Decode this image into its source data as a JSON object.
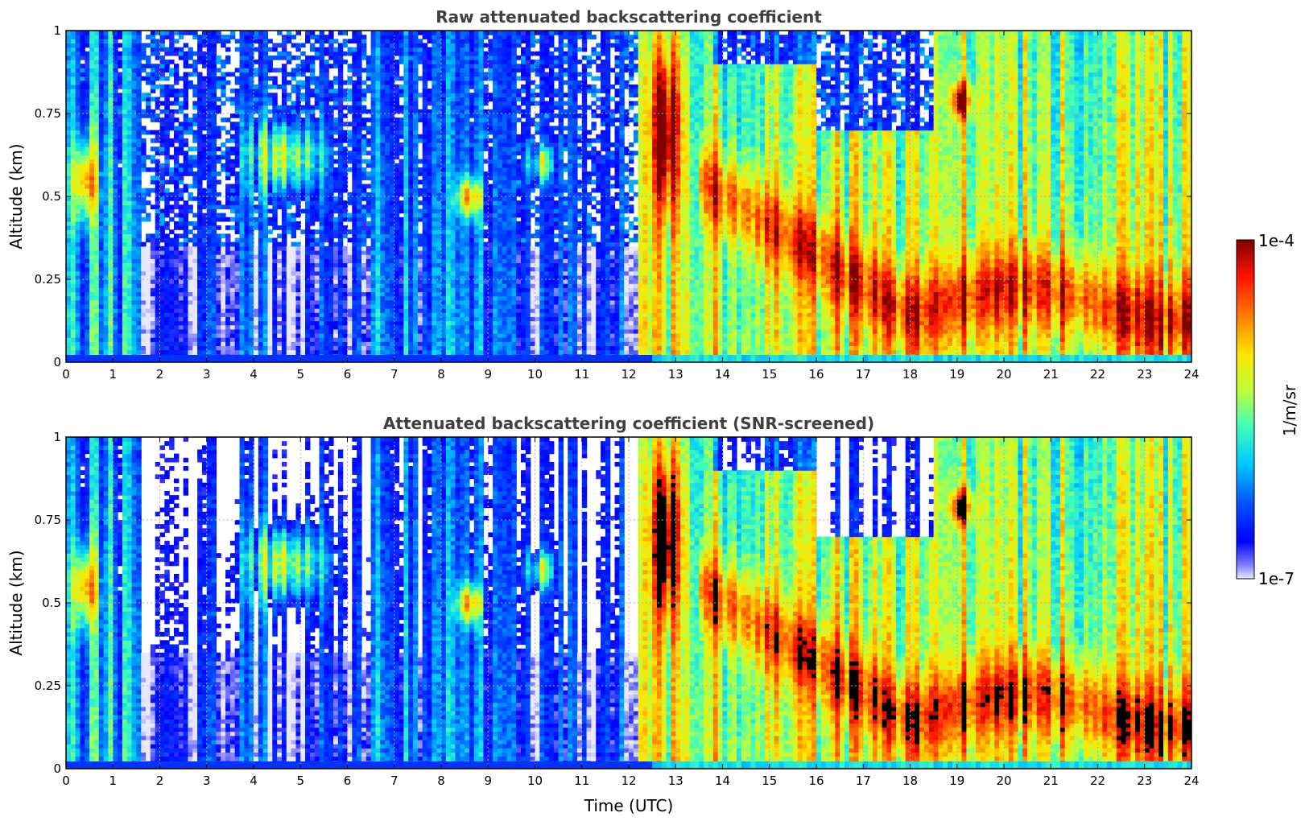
{
  "chart_data": [
    {
      "type": "heatmap",
      "title": "Raw attenuated backscattering coefficient",
      "xlabel": "",
      "ylabel": "Altitude (km)",
      "xlim": [
        0,
        24
      ],
      "ylim": [
        0,
        1
      ],
      "xticks": [
        0,
        1,
        2,
        3,
        4,
        5,
        6,
        7,
        8,
        9,
        10,
        11,
        12,
        13,
        14,
        15,
        16,
        17,
        18,
        19,
        20,
        21,
        22,
        23,
        24
      ],
      "xtick_labels": [
        "0",
        "1",
        "2",
        "3",
        "4",
        "5",
        "6",
        "7",
        "8",
        "9",
        "10",
        "11",
        "12",
        "13",
        "14",
        "15",
        "16",
        "17",
        "18",
        "19",
        "20",
        "21",
        "22",
        "23",
        "24"
      ],
      "yticks": [
        0,
        0.25,
        0.5,
        0.75,
        1
      ],
      "ytick_labels": [
        "0",
        "0.25",
        "0.5",
        "0.75",
        "1"
      ],
      "grid": true,
      "screened": false
    },
    {
      "type": "heatmap",
      "title": "Attenuated backscattering coefficient (SNR-screened)",
      "xlabel": "Time (UTC)",
      "ylabel": "Altitude (km)",
      "xlim": [
        0,
        24
      ],
      "ylim": [
        0,
        1
      ],
      "xticks": [
        0,
        1,
        2,
        3,
        4,
        5,
        6,
        7,
        8,
        9,
        10,
        11,
        12,
        13,
        14,
        15,
        16,
        17,
        18,
        19,
        20,
        21,
        22,
        23,
        24
      ],
      "xtick_labels": [
        "0",
        "1",
        "2",
        "3",
        "4",
        "5",
        "6",
        "7",
        "8",
        "9",
        "10",
        "11",
        "12",
        "13",
        "14",
        "15",
        "16",
        "17",
        "18",
        "19",
        "20",
        "21",
        "22",
        "23",
        "24"
      ],
      "yticks": [
        0,
        0.25,
        0.5,
        0.75,
        1
      ],
      "ytick_labels": [
        "0",
        "0.25",
        "0.5",
        "0.75",
        "1"
      ],
      "grid": true,
      "screened": true
    }
  ],
  "colorbar": {
    "label": "1/m/sr",
    "max_label": "1e-4",
    "min_label": "1e-7",
    "scale": "log",
    "colormap": "jet"
  }
}
